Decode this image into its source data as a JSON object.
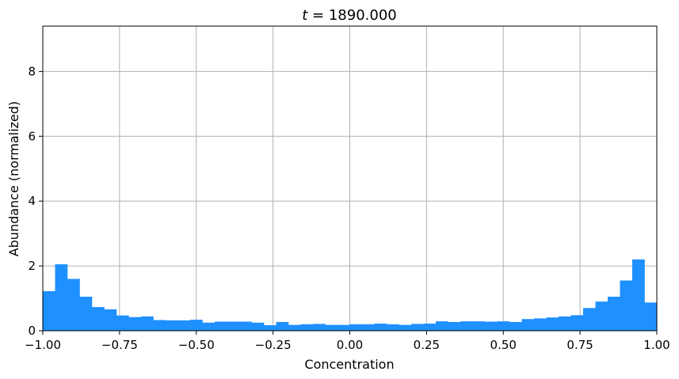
{
  "chart_data": {
    "type": "bar",
    "title_var": "t",
    "title_rest": " = 1890.000",
    "xlabel": "Concentration",
    "ylabel": "Abundance (normalized)",
    "xlim": [
      -1.0,
      1.0
    ],
    "ylim": [
      0,
      9.4
    ],
    "xticks": [
      -1.0,
      -0.75,
      -0.5,
      -0.25,
      0.0,
      0.25,
      0.5,
      0.75,
      1.0
    ],
    "xtick_labels": [
      "−1.00",
      "−0.75",
      "−0.50",
      "−0.25",
      "0.00",
      "0.25",
      "0.50",
      "0.75",
      "1.00"
    ],
    "yticks": [
      0,
      2,
      4,
      6,
      8
    ],
    "ytick_labels": [
      "0",
      "2",
      "4",
      "6",
      "8"
    ],
    "grid": true,
    "bar_color": "#1e90ff",
    "bin_start": -1.0,
    "bin_width": 0.04,
    "values": [
      1.22,
      2.05,
      1.6,
      1.05,
      0.73,
      0.66,
      0.47,
      0.42,
      0.44,
      0.33,
      0.32,
      0.32,
      0.34,
      0.25,
      0.28,
      0.28,
      0.28,
      0.25,
      0.17,
      0.27,
      0.18,
      0.2,
      0.21,
      0.18,
      0.18,
      0.2,
      0.2,
      0.22,
      0.2,
      0.18,
      0.21,
      0.22,
      0.29,
      0.27,
      0.29,
      0.29,
      0.28,
      0.29,
      0.27,
      0.36,
      0.38,
      0.41,
      0.44,
      0.48,
      0.7,
      0.9,
      1.05,
      1.55,
      2.2,
      0.87
    ]
  }
}
